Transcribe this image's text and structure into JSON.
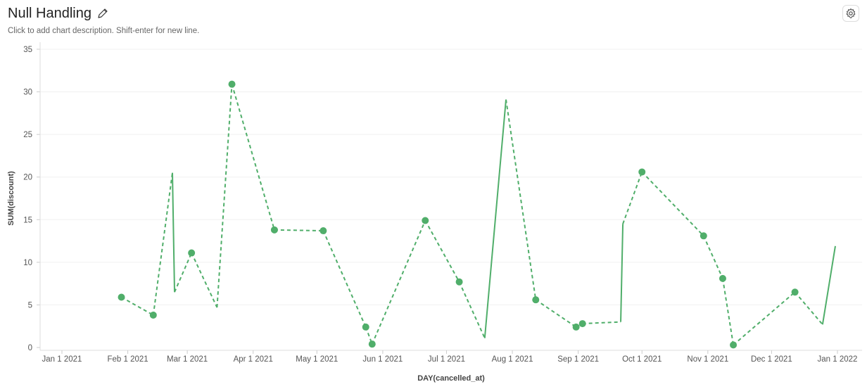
{
  "header": {
    "title": "Null Handling",
    "description_placeholder": "Click to add chart description. Shift-enter for new line.",
    "edit_icon": "pencil-icon",
    "settings_icon": "gear-icon"
  },
  "chart_data": {
    "type": "line",
    "xlabel": "DAY(cancelled_at)",
    "ylabel": "SUM(discount)",
    "xlim": [
      "2021-01-01",
      "2022-01-01"
    ],
    "ylim": [
      0,
      35
    ],
    "y_ticks": [
      0,
      5,
      10,
      15,
      20,
      25,
      30,
      35
    ],
    "x_ticks": [
      {
        "date": "2021-01-01",
        "label": "Jan 1 2021"
      },
      {
        "date": "2021-02-01",
        "label": "Feb 1 2021"
      },
      {
        "date": "2021-03-01",
        "label": "Mar 1 2021"
      },
      {
        "date": "2021-04-01",
        "label": "Apr 1 2021"
      },
      {
        "date": "2021-05-01",
        "label": "May 1 2021"
      },
      {
        "date": "2021-06-01",
        "label": "Jun 1 2021"
      },
      {
        "date": "2021-07-01",
        "label": "Jul 1 2021"
      },
      {
        "date": "2021-08-01",
        "label": "Aug 1 2021"
      },
      {
        "date": "2021-09-01",
        "label": "Sep 1 2021"
      },
      {
        "date": "2021-10-01",
        "label": "Oct 1 2021"
      },
      {
        "date": "2021-11-01",
        "label": "Nov 1 2021"
      },
      {
        "date": "2021-12-01",
        "label": "Dec 1 2021"
      },
      {
        "date": "2022-01-01",
        "label": "Jan 1 2022"
      }
    ],
    "grid": true,
    "color": "#50AE6A",
    "points": [
      {
        "x": "2021-01-29",
        "y": 5.9,
        "dot": true,
        "next": "dashed"
      },
      {
        "x": "2021-02-13",
        "y": 3.8,
        "dot": true,
        "next": "dashed"
      },
      {
        "x": "2021-02-22",
        "y": 20.5,
        "dot": false,
        "next": "solid"
      },
      {
        "x": "2021-02-23",
        "y": 6.5,
        "dot": false,
        "next": "dashed"
      },
      {
        "x": "2021-03-03",
        "y": 11.1,
        "dot": true,
        "next": "dashed"
      },
      {
        "x": "2021-03-15",
        "y": 4.7,
        "dot": false,
        "next": "dashed"
      },
      {
        "x": "2021-03-22",
        "y": 30.9,
        "dot": true,
        "next": "dashed"
      },
      {
        "x": "2021-04-11",
        "y": 13.8,
        "dot": true,
        "next": "dashed"
      },
      {
        "x": "2021-05-04",
        "y": 13.7,
        "dot": true,
        "next": "dashed"
      },
      {
        "x": "2021-05-24",
        "y": 2.4,
        "dot": true,
        "next": "dashed"
      },
      {
        "x": "2021-05-27",
        "y": 0.4,
        "dot": true,
        "next": "dashed"
      },
      {
        "x": "2021-06-21",
        "y": 14.9,
        "dot": true,
        "next": "dashed"
      },
      {
        "x": "2021-07-07",
        "y": 7.7,
        "dot": true,
        "next": "dashed"
      },
      {
        "x": "2021-07-19",
        "y": 1.1,
        "dot": false,
        "next": "solid"
      },
      {
        "x": "2021-07-29",
        "y": 29.1,
        "dot": false,
        "next": "dashed"
      },
      {
        "x": "2021-08-12",
        "y": 5.6,
        "dot": true,
        "next": "dashed"
      },
      {
        "x": "2021-08-31",
        "y": 2.4,
        "dot": true,
        "next": "dashed"
      },
      {
        "x": "2021-09-03",
        "y": 2.8,
        "dot": true,
        "next": "dashed"
      },
      {
        "x": "2021-09-21",
        "y": 3.0,
        "dot": false,
        "next": "solid"
      },
      {
        "x": "2021-09-22",
        "y": 14.5,
        "dot": false,
        "next": "dashed"
      },
      {
        "x": "2021-10-01",
        "y": 20.6,
        "dot": true,
        "next": "dashed"
      },
      {
        "x": "2021-10-30",
        "y": 13.1,
        "dot": true,
        "next": "dashed"
      },
      {
        "x": "2021-11-08",
        "y": 8.1,
        "dot": true,
        "next": "dashed"
      },
      {
        "x": "2021-11-13",
        "y": 0.3,
        "dot": true,
        "next": "dashed"
      },
      {
        "x": "2021-12-12",
        "y": 6.5,
        "dot": true,
        "next": "dashed"
      },
      {
        "x": "2021-12-25",
        "y": 2.7,
        "dot": false,
        "next": "solid"
      },
      {
        "x": "2021-12-31",
        "y": 11.9,
        "dot": false,
        "next": null
      }
    ]
  }
}
